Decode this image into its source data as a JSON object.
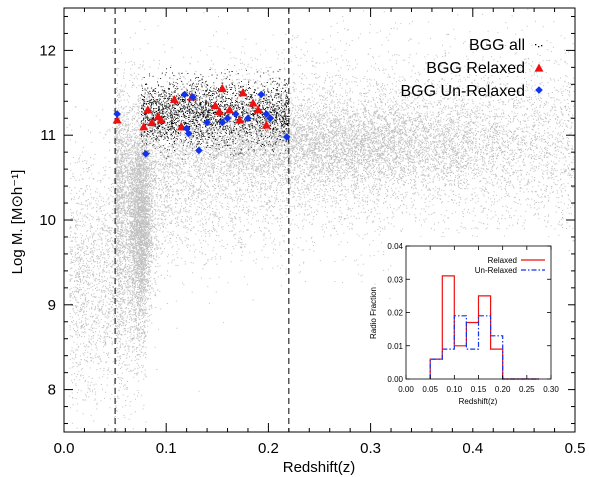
{
  "chart_data": [
    {
      "type": "scatter",
      "xlabel": "Redshift(z)",
      "ylabel": "Log M. [M⊙h⁻¹]",
      "xlim": [
        0.0,
        0.5
      ],
      "ylim": [
        7.5,
        12.5
      ],
      "xticks": [
        "0.0",
        "0.1",
        "0.2",
        "0.3",
        "0.4",
        "0.5"
      ],
      "yticks": [
        "8",
        "9",
        "10",
        "11",
        "12"
      ],
      "vertical_lines": [
        0.05,
        0.22
      ],
      "legend": {
        "placement": "top-right",
        "entries": [
          "BGG all",
          "BGG Relaxed",
          "BGG Un-Relaxed"
        ]
      },
      "colors": {
        "background": "#c0c0c0",
        "bgg_all": "#000000",
        "relaxed": "#ee1111",
        "unrelaxed": "#1133ee"
      },
      "series": [
        {
          "name": "BGG Relaxed",
          "marker": "triangle",
          "points": [
            [
              0.052,
              11.18
            ],
            [
              0.078,
              11.1
            ],
            [
              0.082,
              11.3
            ],
            [
              0.086,
              11.15
            ],
            [
              0.092,
              11.22
            ],
            [
              0.095,
              11.18
            ],
            [
              0.108,
              11.42
            ],
            [
              0.115,
              11.1
            ],
            [
              0.125,
              11.45
            ],
            [
              0.148,
              11.35
            ],
            [
              0.152,
              11.28
            ],
            [
              0.155,
              11.55
            ],
            [
              0.162,
              11.3
            ],
            [
              0.172,
              11.18
            ],
            [
              0.175,
              11.5
            ],
            [
              0.185,
              11.38
            ],
            [
              0.19,
              11.3
            ],
            [
              0.198,
              11.12
            ]
          ]
        },
        {
          "name": "BGG Un-Relaxed",
          "marker": "diamond",
          "points": [
            [
              0.052,
              11.25
            ],
            [
              0.08,
              10.78
            ],
            [
              0.118,
              11.48
            ],
            [
              0.12,
              11.08
            ],
            [
              0.122,
              11.02
            ],
            [
              0.126,
              11.45
            ],
            [
              0.132,
              10.82
            ],
            [
              0.14,
              11.15
            ],
            [
              0.155,
              11.15
            ],
            [
              0.16,
              11.2
            ],
            [
              0.168,
              11.25
            ],
            [
              0.18,
              11.2
            ],
            [
              0.193,
              11.48
            ],
            [
              0.198,
              11.25
            ],
            [
              0.202,
              11.2
            ],
            [
              0.218,
              10.98
            ]
          ]
        }
      ]
    },
    {
      "type": "line",
      "xlabel": "Redshift(z)",
      "ylabel": "Radio Fraction",
      "xlim": [
        0.0,
        0.3
      ],
      "ylim": [
        0.0,
        0.04
      ],
      "xticks": [
        "0.00",
        "0.05",
        "0.10",
        "0.15",
        "0.20",
        "0.25",
        "0.30"
      ],
      "yticks": [
        "0.00",
        "0.01",
        "0.02",
        "0.03",
        "0.04"
      ],
      "legend": {
        "placement": "top-right",
        "entries": [
          "Relaxed",
          "Un-Relaxed"
        ]
      },
      "bin_edges": [
        0.05,
        0.075,
        0.1,
        0.125,
        0.15,
        0.175,
        0.2,
        0.225,
        0.25,
        0.275
      ],
      "series": [
        {
          "name": "Relaxed",
          "style": "solid",
          "color": "#ee1111",
          "values": [
            0.006,
            0.031,
            0.01,
            0.017,
            0.025,
            0.009,
            0.0,
            0.0,
            0.0
          ]
        },
        {
          "name": "Un-Relaxed",
          "style": "dash-dot",
          "color": "#1133ee",
          "values": [
            0.006,
            0.009,
            0.019,
            0.009,
            0.019,
            0.013,
            0.0,
            0.0,
            0.0
          ]
        }
      ]
    }
  ]
}
